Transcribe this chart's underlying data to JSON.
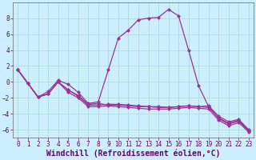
{
  "xlabel": "Windchill (Refroidissement éolien,°C)",
  "background_color": "#cceeff",
  "grid_color": "#aadddd",
  "line_color": "#993399",
  "x": [
    0,
    1,
    2,
    3,
    4,
    5,
    6,
    7,
    8,
    9,
    10,
    11,
    12,
    13,
    14,
    15,
    16,
    17,
    18,
    19,
    20,
    21,
    22,
    23
  ],
  "series": [
    [
      1.5,
      -0.2,
      -1.9,
      -1.2,
      0.2,
      -0.3,
      -1.3,
      -2.7,
      -2.5,
      1.5,
      5.5,
      6.5,
      7.8,
      8.0,
      8.1,
      9.1,
      8.3,
      4.0,
      -0.5,
      -3.1,
      -4.6,
      -5.3,
      -4.9,
      -6.2
    ],
    [
      1.5,
      -0.2,
      -1.9,
      -1.5,
      0.0,
      -1.0,
      -1.8,
      -2.9,
      -2.9,
      -2.8,
      -2.8,
      -2.9,
      -3.0,
      -3.1,
      -3.2,
      -3.2,
      -3.1,
      -3.0,
      -3.1,
      -3.2,
      -4.5,
      -5.2,
      -4.8,
      -6.1
    ],
    [
      1.5,
      -0.2,
      -1.9,
      -1.5,
      0.0,
      -1.3,
      -2.0,
      -3.1,
      -3.1,
      -3.0,
      -3.1,
      -3.2,
      -3.3,
      -3.4,
      -3.4,
      -3.4,
      -3.3,
      -3.2,
      -3.3,
      -3.4,
      -4.8,
      -5.5,
      -5.1,
      -6.3
    ],
    [
      1.5,
      -0.2,
      -1.9,
      -1.5,
      0.0,
      -1.0,
      -1.7,
      -2.8,
      -2.7,
      -2.9,
      -2.9,
      -3.0,
      -3.1,
      -3.1,
      -3.1,
      -3.2,
      -3.1,
      -3.0,
      -3.1,
      -3.0,
      -4.3,
      -5.0,
      -4.7,
      -6.0
    ]
  ],
  "ylim": [
    -7,
    10
  ],
  "xlim": [
    -0.5,
    23.5
  ],
  "yticks": [
    -6,
    -4,
    -2,
    0,
    2,
    4,
    6,
    8
  ],
  "xticks": [
    0,
    1,
    2,
    3,
    4,
    5,
    6,
    7,
    8,
    9,
    10,
    11,
    12,
    13,
    14,
    15,
    16,
    17,
    18,
    19,
    20,
    21,
    22,
    23
  ],
  "tick_fontsize": 5.5,
  "xlabel_fontsize": 7.0,
  "marker": "D",
  "markersize": 2.0,
  "linewidth": 0.9
}
